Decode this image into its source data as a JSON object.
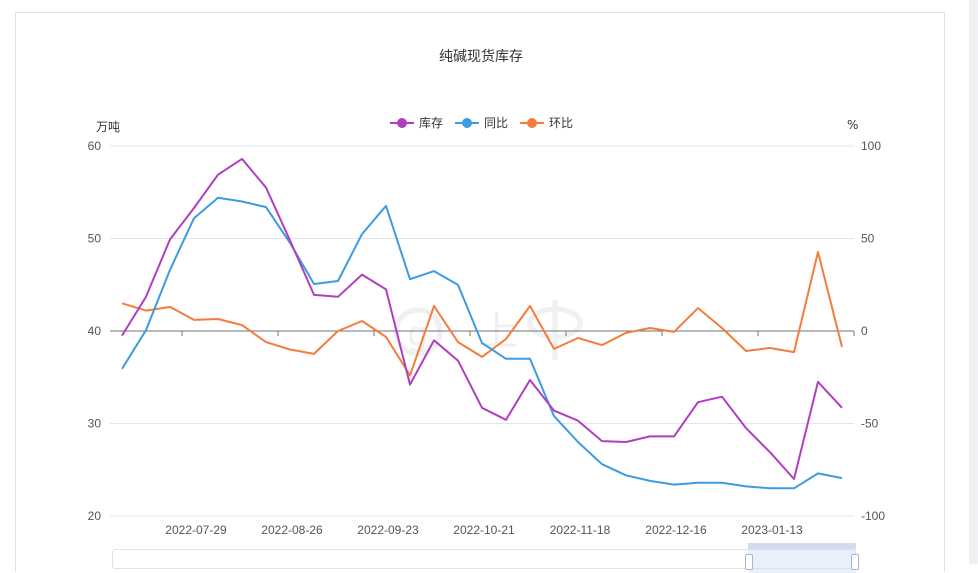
{
  "chart": {
    "title": "纯碱现货库存",
    "left_axis_unit": "万吨",
    "right_axis_unit": "%",
    "legend": [
      {
        "name": "库存",
        "color": "#b03fbf"
      },
      {
        "name": "同比",
        "color": "#3d9be0"
      },
      {
        "name": "环比",
        "color": "#f47c3c"
      }
    ],
    "x_tick_labels": [
      "2022-07-29",
      "2022-08-26",
      "2022-09-23",
      "2022-10-21",
      "2022-11-18",
      "2022-12-16",
      "2023-01-13"
    ],
    "left_ticks": [
      "60",
      "50",
      "40",
      "30",
      "20"
    ],
    "right_ticks": [
      "100",
      "50",
      "0",
      "-50",
      "-100"
    ]
  },
  "chart_data": {
    "type": "line",
    "title": "纯碱现货库存",
    "xlabel": "",
    "ylabel": "万吨",
    "y2label": "%",
    "ylim": [
      20,
      60
    ],
    "y2lim": [
      -100,
      100
    ],
    "grid": true,
    "legend_position": "top",
    "x": [
      "2022-07-08",
      "2022-07-15",
      "2022-07-22",
      "2022-07-29",
      "2022-08-05",
      "2022-08-12",
      "2022-08-19",
      "2022-08-26",
      "2022-09-02",
      "2022-09-09",
      "2022-09-16",
      "2022-09-23",
      "2022-09-30",
      "2022-10-07",
      "2022-10-14",
      "2022-10-21",
      "2022-10-28",
      "2022-11-04",
      "2022-11-11",
      "2022-11-18",
      "2022-11-25",
      "2022-12-02",
      "2022-12-09",
      "2022-12-16",
      "2022-12-23",
      "2022-12-30",
      "2023-01-06",
      "2023-01-13",
      "2023-01-20",
      "2023-01-27",
      "2023-02-03"
    ],
    "series": [
      {
        "name": "库存",
        "axis": "left",
        "unit": "万吨",
        "color": "#b03fbf",
        "values": [
          39.5,
          43.7,
          49.9,
          53.3,
          56.9,
          58.6,
          55.5,
          49.8,
          43.9,
          43.7,
          46.1,
          44.5,
          34.2,
          39.0,
          36.8,
          31.7,
          30.4,
          34.7,
          31.4,
          30.3,
          28.1,
          28.0,
          28.6,
          28.6,
          32.3,
          32.9,
          29.5,
          26.9,
          24.0,
          34.5,
          31.7
        ]
      },
      {
        "name": "同比",
        "axis": "right",
        "unit": "%",
        "color": "#3d9be0",
        "values": [
          -20.5,
          0.5,
          33,
          61,
          72,
          70,
          67,
          47.6,
          25.4,
          27,
          52.4,
          67.6,
          28,
          32.4,
          24.9,
          -6.5,
          -15,
          -15,
          -46,
          -60,
          -72,
          -78,
          -81,
          -83,
          -82,
          -82,
          -84,
          -85,
          -85,
          -77,
          -79.5
        ]
      },
      {
        "name": "环比",
        "axis": "right",
        "unit": "%",
        "color": "#f47c3c",
        "values": [
          15,
          11,
          13,
          6,
          6.5,
          3.2,
          -6,
          -10,
          -12.4,
          0,
          5.4,
          -3.2,
          -24,
          13.5,
          -6,
          -14,
          -4.3,
          13.5,
          -9.7,
          -3.8,
          -7.6,
          -1,
          1.6,
          -0.5,
          12.4,
          1.6,
          -10.8,
          -9.2,
          -11.4,
          42.7,
          -8.6
        ]
      }
    ]
  }
}
